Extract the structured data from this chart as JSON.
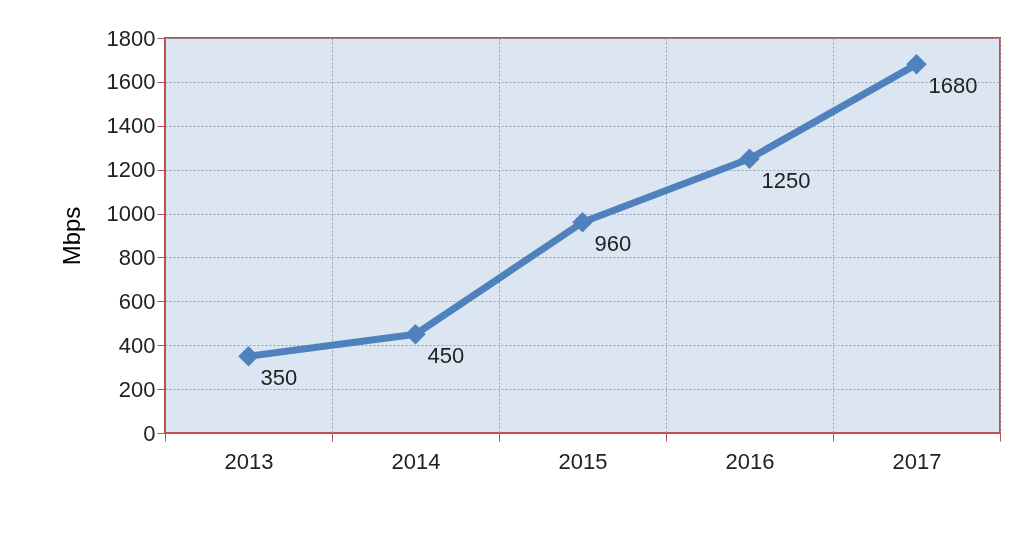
{
  "chart_data": {
    "type": "line",
    "ylabel": "Mbps",
    "categories": [
      "2013",
      "2014",
      "2015",
      "2016",
      "2017"
    ],
    "series": [
      {
        "color": "#4f81bd",
        "values": [
          350,
          450,
          960,
          1250,
          1680
        ]
      }
    ],
    "ylim": [
      0,
      1800
    ],
    "yticks": [
      0,
      200,
      400,
      600,
      800,
      1000,
      1200,
      1400,
      1600,
      1800
    ],
    "grid": true,
    "marker": "diamond",
    "line_style": "solid",
    "data_labels": true,
    "legend": false
  }
}
